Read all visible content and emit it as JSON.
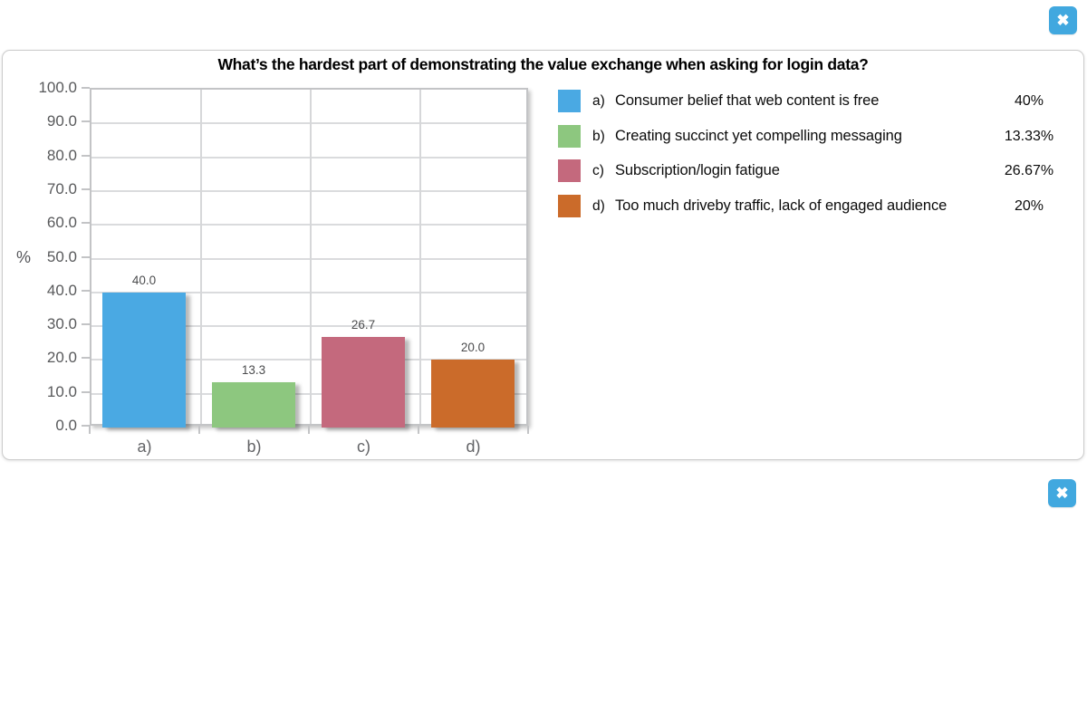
{
  "overlay": {
    "close_top_label": "✖",
    "close_bottom_label": "✖",
    "close_icon_name": "close-x-icon",
    "close_button_color": "#41a8df"
  },
  "panel": {
    "title": "What’s the hardest part of demonstrating the value exchange when asking for login data?"
  },
  "chart_data": {
    "type": "bar",
    "title": "What’s the hardest part of demonstrating the value exchange when asking for login data?",
    "categories": [
      "a)",
      "b)",
      "c)",
      "d)"
    ],
    "values": [
      40.0,
      13.3,
      26.7,
      20.0
    ],
    "value_labels": [
      "40.0",
      "13.3",
      "26.7",
      "20.0"
    ],
    "bar_colors": [
      "#4aa9e3",
      "#8dc77f",
      "#c4697d",
      "#cb6b2a"
    ],
    "xlabel": "",
    "ylabel": "%",
    "ylim": [
      0,
      100
    ],
    "ytick_step": 10,
    "ytick_labels": [
      "100.0",
      "90.0",
      "80.0",
      "70.0",
      "60.0",
      "50.0",
      "40.0",
      "30.0",
      "20.0",
      "10.0",
      "0.0"
    ],
    "grid": true,
    "legend_position": "right"
  },
  "legend": {
    "items": [
      {
        "key": "a)",
        "label": "Consumer belief that web content is free",
        "percent": "40%",
        "color": "#4aa9e3"
      },
      {
        "key": "b)",
        "label": "Creating succinct yet compelling messaging",
        "percent": "13.33%",
        "color": "#8dc77f"
      },
      {
        "key": "c)",
        "label": "Subscription/login fatigue",
        "percent": "26.67%",
        "color": "#c4697d"
      },
      {
        "key": "d)",
        "label": "Too much driveby traffic, lack of engaged audience",
        "percent": "20%",
        "color": "#cb6b2a"
      }
    ]
  }
}
